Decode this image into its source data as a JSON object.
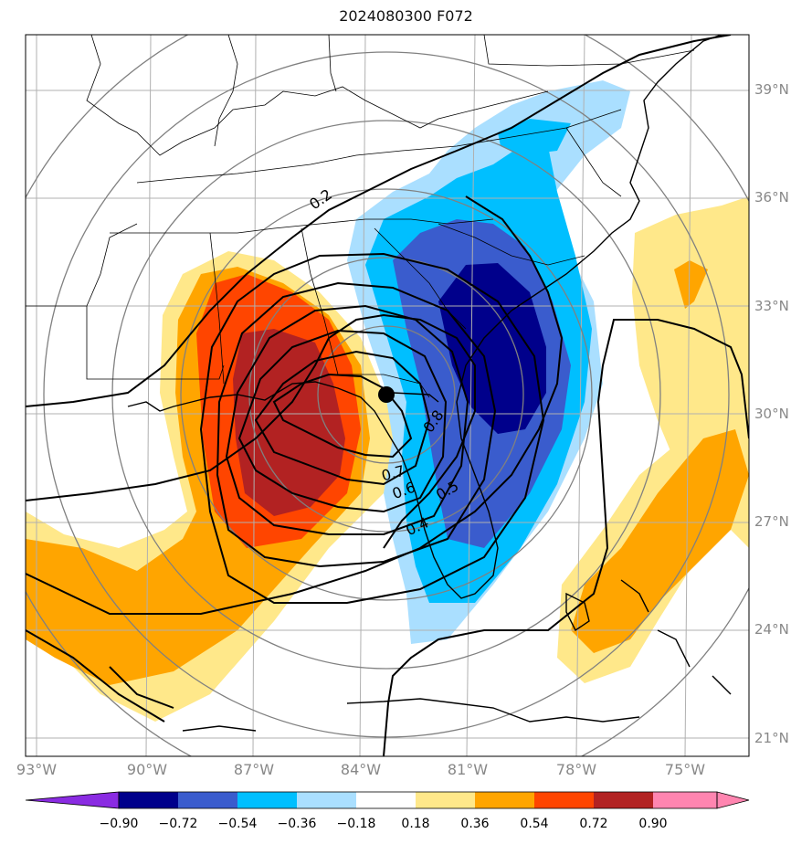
{
  "title": "2024080300 F072",
  "lat_labels": [
    "39°N",
    "36°N",
    "33°N",
    "30°N",
    "27°N",
    "24°N",
    "21°N"
  ],
  "lon_labels": [
    "93°W",
    "90°W",
    "87°W",
    "84°W",
    "81°W",
    "78°W",
    "75°W"
  ],
  "colorbar": {
    "ticks": [
      "−0.90",
      "−0.72",
      "−0.54",
      "−0.36",
      "−0.18",
      "0.18",
      "0.36",
      "0.54",
      "0.72",
      "0.90"
    ],
    "colors": [
      "#8a2be2",
      "#00008b",
      "#3a5ccd",
      "#00bfff",
      "#aadfff",
      "#ffffff",
      "#ffe88a",
      "#ffa500",
      "#ff4500",
      "#b22222",
      "#ff85b0"
    ]
  },
  "contour_labels": [
    "0.2",
    "0.4",
    "0.5",
    "0.6",
    "0.7",
    "0.8"
  ],
  "colors": {
    "neg_strong": "#00008b",
    "neg_mid": "#3a5ccd",
    "neg_light": "#00bfff",
    "neg_faint": "#aadfff",
    "pos_faint": "#ffe88a",
    "pos_light": "#ffa500",
    "pos_mid": "#ff4500",
    "pos_strong": "#b22222"
  },
  "center_marker": "storm-center-dot"
}
